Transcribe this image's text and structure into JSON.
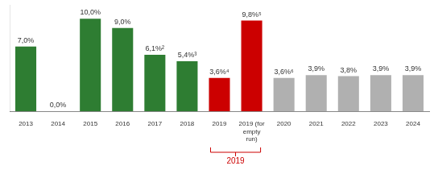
{
  "chart_data": {
    "type": "bar",
    "categories": [
      "2013",
      "2014",
      "2015",
      "2016",
      "2017",
      "2018",
      "2019",
      "2019 (for\nempty\nrun)",
      "2020",
      "2021",
      "2022",
      "2023",
      "2024"
    ],
    "values": [
      7.0,
      0.0,
      10.0,
      9.0,
      6.1,
      5.4,
      3.6,
      9.8,
      3.6,
      3.9,
      3.8,
      3.9,
      3.9
    ],
    "value_labels": [
      "7,0%",
      "0,0%",
      "10,0%",
      "9,0%",
      "6,1%²",
      "5,4%³",
      "3,6%⁴",
      "9,8%⁵",
      "3,6%⁶",
      "3,9%",
      "3,8%",
      "3,9%",
      "3,9%"
    ],
    "colors": [
      "#2e7d32",
      "#2e7d32",
      "#2e7d32",
      "#2e7d32",
      "#2e7d32",
      "#2e7d32",
      "#cc0000",
      "#cc0000",
      "#b0b0b0",
      "#b0b0b0",
      "#b0b0b0",
      "#b0b0b0",
      "#b0b0b0"
    ],
    "data_labels": true,
    "ylim": [
      0,
      11.5
    ],
    "tick_labels": "x",
    "grid": false,
    "annotations": [
      {
        "text": "2019",
        "color": "#cc0000",
        "span": [
          "2019",
          "2019 (for\nempty\nrun)"
        ]
      }
    ]
  }
}
